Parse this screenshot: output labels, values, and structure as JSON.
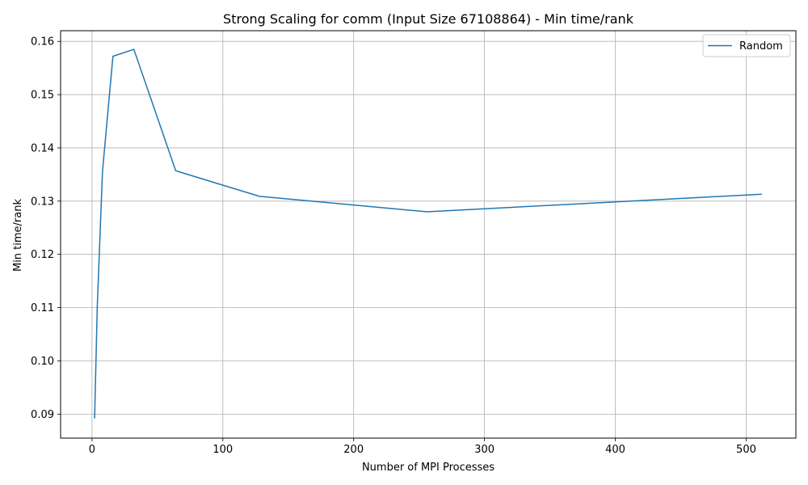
{
  "chart_data": {
    "type": "line",
    "title": "Strong Scaling for comm (Input Size 67108864) - Min time/rank",
    "xlabel": "Number of MPI Processes",
    "ylabel": "Min time/rank",
    "xlim": [
      -24,
      538
    ],
    "ylim": [
      0.0855,
      0.162
    ],
    "xticks": [
      0,
      100,
      200,
      300,
      400,
      500
    ],
    "yticks": [
      0.09,
      0.1,
      0.11,
      0.12,
      0.13,
      0.14,
      0.15,
      0.16
    ],
    "xtick_labels": [
      "0",
      "100",
      "200",
      "300",
      "400",
      "500"
    ],
    "ytick_labels": [
      "0.09",
      "0.10",
      "0.11",
      "0.12",
      "0.13",
      "0.14",
      "0.15",
      "0.16"
    ],
    "grid": true,
    "legend_position": "top-right",
    "series": [
      {
        "name": "Random",
        "color": "#1f77b4",
        "x": [
          2,
          4,
          8,
          16,
          32,
          64,
          128,
          256,
          512
        ],
        "y": [
          0.0892,
          0.11,
          0.1355,
          0.1572,
          0.1585,
          0.1357,
          0.1309,
          0.128,
          0.1313
        ]
      }
    ]
  }
}
